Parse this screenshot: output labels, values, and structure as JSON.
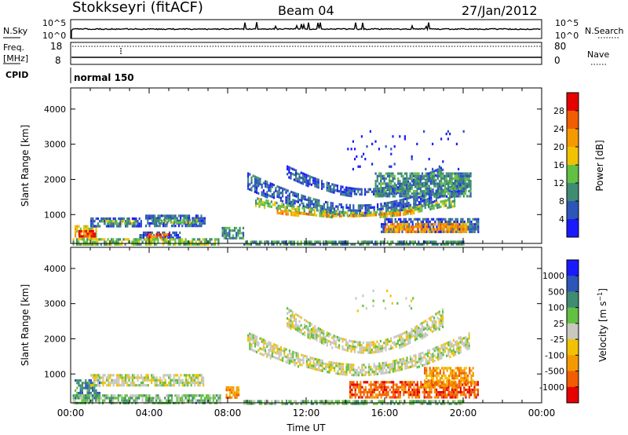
{
  "header": {
    "station": "Stokkseyri (fitACF)",
    "beam": "Beam 04",
    "date": "27/Jan/2012"
  },
  "noise_panel": {
    "left_label": "N.Sky",
    "left_tick_top": "10^5",
    "left_tick_bottom": "10^0",
    "right_tick_top": "10^5",
    "right_tick_bottom": "10^0",
    "right_label": "N.Search"
  },
  "freq_panel": {
    "left_label_1": "Freq.",
    "left_label_2": "[MHz]",
    "left_tick_top": "18",
    "left_tick_bottom": "8",
    "right_tick_top": "80",
    "right_tick_bottom": "0",
    "right_label": "Nave"
  },
  "cpid_panel": {
    "label": "CPID",
    "mode": "normal 150"
  },
  "chart_data": [
    {
      "type": "heatmap",
      "title": "",
      "xlabel": "",
      "ylabel": "Slant Range [km]",
      "xlim": [
        0,
        24
      ],
      "ylim": [
        180,
        4600
      ],
      "y_ticks": [
        "1000",
        "2000",
        "3000",
        "4000"
      ],
      "colorbar_label": "Power [dB]",
      "colorbar_ticks": [
        "4",
        "8",
        "12",
        "16",
        "20",
        "24",
        "28"
      ],
      "colors": [
        "#1a1aff",
        "#2d56b8",
        "#3f8c72",
        "#62c043",
        "#f2c200",
        "#f49a00",
        "#f25d00",
        "#e60000"
      ],
      "regions": [
        {
          "t0": 0.2,
          "t1": 1.3,
          "r0": 300,
          "r1": 700,
          "level": 4
        },
        {
          "t0": 0.4,
          "t1": 1.2,
          "r0": 380,
          "r1": 560,
          "level": 7
        },
        {
          "t0": 1.0,
          "t1": 3.6,
          "r0": 650,
          "r1": 920,
          "level": 1
        },
        {
          "t0": 1.5,
          "t1": 3.3,
          "r0": 730,
          "r1": 850,
          "level": 3
        },
        {
          "t0": 3.8,
          "t1": 6.8,
          "r0": 700,
          "r1": 1000,
          "level": 1
        },
        {
          "t0": 4.1,
          "t1": 6.4,
          "r0": 780,
          "r1": 880,
          "level": 3
        },
        {
          "t0": 3.5,
          "t1": 5.6,
          "r0": 330,
          "r1": 520,
          "level": 1
        },
        {
          "t0": 3.9,
          "t1": 5.0,
          "r0": 370,
          "r1": 470,
          "level": 6
        },
        {
          "t0": 7.7,
          "t1": 8.8,
          "r0": 330,
          "r1": 650,
          "level": 2
        },
        {
          "t0": 0.1,
          "t1": 7.5,
          "r0": 180,
          "r1": 330,
          "level": 3
        },
        {
          "t0": 8.8,
          "t1": 20.0,
          "r0": 180,
          "r1": 260,
          "level": 2
        },
        {
          "t0": 9.0,
          "t1": 20.3,
          "r0": 800,
          "r1": 2200,
          "level": 1,
          "arc": true
        },
        {
          "t0": 9.4,
          "t1": 19.6,
          "r0": 850,
          "r1": 1500,
          "level": 3,
          "arc": true
        },
        {
          "t0": 10.5,
          "t1": 17.5,
          "r0": 900,
          "r1": 1150,
          "level": 5,
          "arc": true
        },
        {
          "t0": 11.0,
          "t1": 19.0,
          "r0": 1400,
          "r1": 2400,
          "level": 1,
          "arc": true
        },
        {
          "t0": 15.5,
          "t1": 20.4,
          "r0": 1500,
          "r1": 2200,
          "level": 2
        },
        {
          "t0": 15.8,
          "t1": 20.8,
          "r0": 500,
          "r1": 900,
          "level": 1
        },
        {
          "t0": 16.0,
          "t1": 20.2,
          "r0": 540,
          "r1": 760,
          "level": 5
        },
        {
          "t0": 14.0,
          "t1": 20.0,
          "r0": 2300,
          "r1": 3400,
          "level": 0,
          "sparse": true
        }
      ]
    },
    {
      "type": "heatmap",
      "title": "",
      "xlabel": "Time UT",
      "ylabel": "Slant Range [km]",
      "xlim": [
        0,
        24
      ],
      "ylim": [
        180,
        4600
      ],
      "x_ticks": [
        "00:00",
        "04:00",
        "08:00",
        "12:00",
        "16:00",
        "20:00",
        "00:00"
      ],
      "y_ticks": [
        "1000",
        "2000",
        "3000",
        "4000"
      ],
      "colorbar_label": "Velocity [m s^-1]",
      "colorbar_ticks": [
        "1000",
        "500",
        "100",
        "25",
        "-25",
        "-100",
        "-500",
        "-1000"
      ],
      "colors": [
        "#1a1aff",
        "#2d56b8",
        "#3f8c72",
        "#62c043",
        "#c8c8c0",
        "#f2c200",
        "#f49a00",
        "#f25d00",
        "#e60000"
      ],
      "regions": [
        {
          "t0": 0.2,
          "t1": 1.5,
          "r0": 280,
          "r1": 850,
          "level": 2
        },
        {
          "t0": 1.0,
          "t1": 6.8,
          "r0": 650,
          "r1": 1000,
          "level": 4
        },
        {
          "t0": 0.1,
          "t1": 7.6,
          "r0": 180,
          "r1": 420,
          "level": 3
        },
        {
          "t0": 7.9,
          "t1": 8.6,
          "r0": 300,
          "r1": 650,
          "level": 6
        },
        {
          "t0": 9.0,
          "t1": 20.3,
          "r0": 800,
          "r1": 2200,
          "level": 4,
          "arc": true
        },
        {
          "t0": 11.0,
          "t1": 19.0,
          "r0": 1400,
          "r1": 2900,
          "level": 4,
          "arc": true
        },
        {
          "t0": 14.5,
          "t1": 17.5,
          "r0": 2700,
          "r1": 3400,
          "level": 4,
          "sparse": true
        },
        {
          "t0": 14.2,
          "t1": 20.8,
          "r0": 350,
          "r1": 800,
          "level": 7
        },
        {
          "t0": 18.0,
          "t1": 20.5,
          "r0": 650,
          "r1": 1200,
          "level": 6
        },
        {
          "t0": 8.8,
          "t1": 20.0,
          "r0": 180,
          "r1": 260,
          "level": 3
        }
      ]
    }
  ]
}
